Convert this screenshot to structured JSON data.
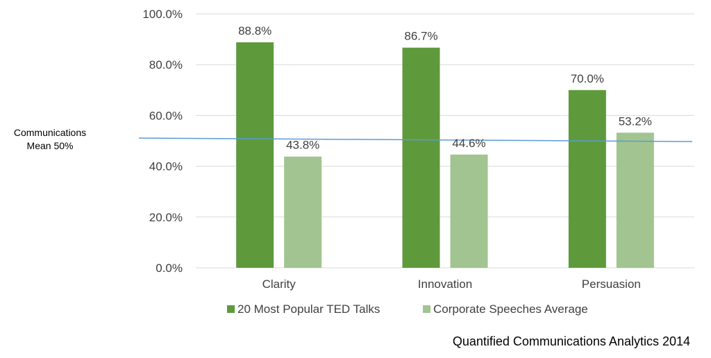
{
  "chart_data": {
    "type": "bar",
    "categories": [
      "Clarity",
      "Innovation",
      "Persuasion"
    ],
    "series": [
      {
        "name": "20 Most Popular TED Talks",
        "values": [
          88.8,
          86.7,
          70.0
        ],
        "labels": [
          "88.8%",
          "86.7%",
          "70.0%"
        ],
        "color": "#5e9a3c"
      },
      {
        "name": "Corporate Speeches Average",
        "values": [
          43.8,
          44.6,
          53.2
        ],
        "labels": [
          "43.8%",
          "44.6%",
          "53.2%"
        ],
        "color": "#a1c490"
      }
    ],
    "ylim": [
      0,
      100
    ],
    "yticks": [
      0,
      20,
      40,
      60,
      80,
      100
    ],
    "ytick_labels": [
      "0.0%",
      "20.0%",
      "40.0%",
      "60.0%",
      "80.0%",
      "100.0%"
    ],
    "reference_line": {
      "label_line1": "Communications",
      "label_line2": "Mean 50%",
      "value": 50,
      "color": "#5b9bd5"
    },
    "grid": true,
    "legend_position": "bottom",
    "source": "Quantified Communications Analytics 2014"
  }
}
